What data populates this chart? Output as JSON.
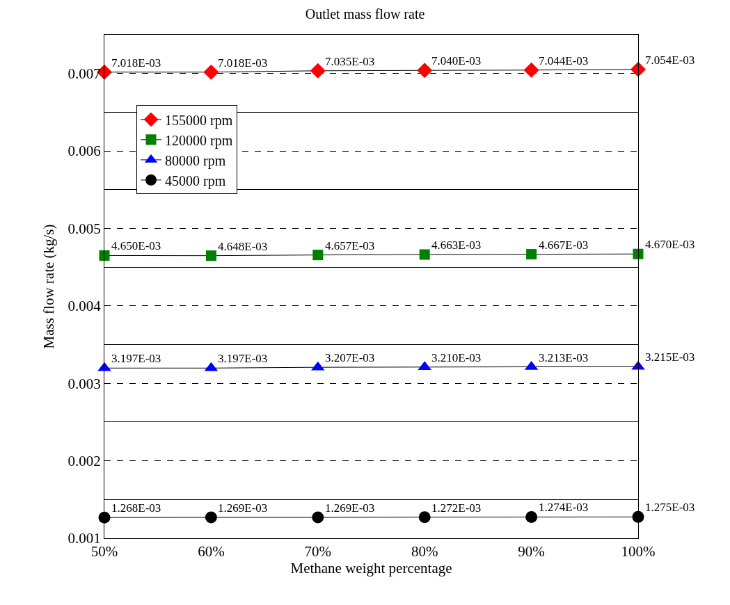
{
  "chart_data": {
    "type": "line",
    "title": "Outlet mass flow rate",
    "xlabel": "Methane weight percentage",
    "ylabel": "Mass flow rate (kg/s)",
    "categories": [
      "50%",
      "60%",
      "70%",
      "80%",
      "90%",
      "100%"
    ],
    "series": [
      {
        "name": "155000 rpm",
        "color": "#ff0000",
        "marker": "diamond",
        "values": [
          0.007018,
          0.007018,
          0.007035,
          0.00704,
          0.007044,
          0.007054
        ],
        "value_labels": [
          "7.018E-03",
          "7.018E-03",
          "7.035E-03",
          "7.040E-03",
          "7.044E-03",
          "7.054E-03"
        ]
      },
      {
        "name": "120000 rpm",
        "color": "#008000",
        "marker": "square",
        "values": [
          0.00465,
          0.004648,
          0.004657,
          0.004663,
          0.004667,
          0.00467
        ],
        "value_labels": [
          "4.650E-03",
          "4.648E-03",
          "4.657E-03",
          "4.663E-03",
          "4.667E-03",
          "4.670E-03"
        ]
      },
      {
        "name": "80000 rpm",
        "color": "#0000ff",
        "marker": "triangle",
        "values": [
          0.003197,
          0.003197,
          0.003207,
          0.00321,
          0.003213,
          0.003215
        ],
        "value_labels": [
          "3.197E-03",
          "3.197E-03",
          "3.207E-03",
          "3.210E-03",
          "3.213E-03",
          "3.215E-03"
        ]
      },
      {
        "name": "45000 rpm",
        "color": "#000000",
        "marker": "circle",
        "values": [
          0.001268,
          0.001269,
          0.001269,
          0.001272,
          0.001274,
          0.001275
        ],
        "value_labels": [
          "1.268E-03",
          "1.269E-03",
          "1.269E-03",
          "1.272E-03",
          "1.274E-03",
          "1.275E-03"
        ]
      }
    ],
    "ylim": [
      0.001,
      0.0075
    ],
    "yticks": [
      0.001,
      0.002,
      0.003,
      0.004,
      0.005,
      0.006,
      0.007
    ],
    "grid": "y",
    "legend": "top left",
    "line_style": "solid"
  }
}
